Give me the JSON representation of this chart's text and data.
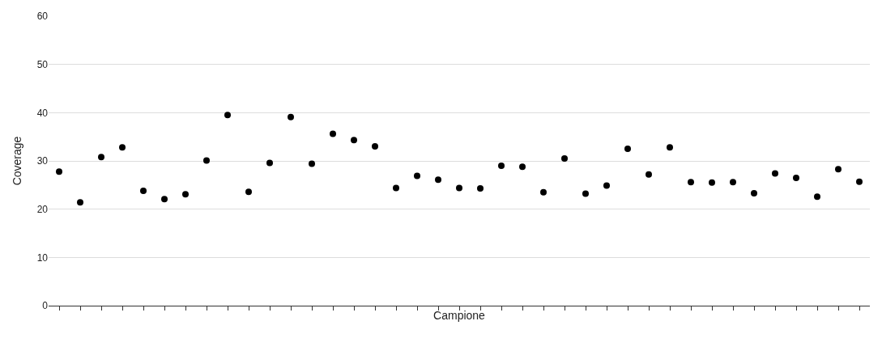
{
  "chart_data": {
    "type": "scatter",
    "xlabel": "Campione",
    "ylabel": "Coverage",
    "categories": [
      null,
      null,
      null,
      null,
      null,
      null,
      null,
      null,
      null,
      null,
      null,
      null,
      null,
      null,
      null,
      null,
      null,
      null,
      null,
      null,
      null,
      null,
      null,
      null,
      null,
      null,
      null,
      null,
      null,
      null,
      null,
      null,
      null,
      null,
      null,
      null,
      null,
      null,
      null
    ],
    "series": [
      {
        "color": "#000000",
        "values": [
          27.8,
          21.4,
          30.8,
          32.8,
          23.8,
          22.1,
          23.1,
          30.1,
          39.5,
          23.6,
          29.6,
          39.1,
          29.4,
          35.6,
          34.3,
          33.0,
          24.4,
          26.9,
          26.1,
          24.4,
          24.3,
          29.0,
          28.8,
          23.5,
          30.5,
          23.2,
          24.9,
          32.5,
          27.2,
          32.8,
          25.6,
          25.5,
          25.6,
          23.3,
          27.4,
          26.5,
          22.6,
          28.3,
          25.7
        ]
      }
    ],
    "ylim": [
      0,
      60
    ],
    "yticks": [
      0,
      10,
      20,
      30,
      40,
      50,
      60
    ],
    "grid": "y",
    "marker": "circle",
    "tick_labels": "y",
    "legend": false
  }
}
